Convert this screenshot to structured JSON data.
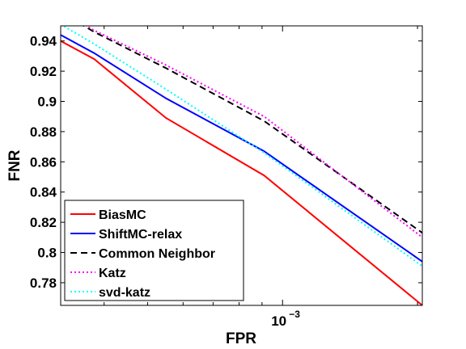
{
  "chart_data": {
    "type": "line",
    "xlabel": "FPR",
    "ylabel": "FNR",
    "x_scale": "log",
    "xlim": [
      0.00032,
      0.00205
    ],
    "ylim": [
      0.765,
      0.95
    ],
    "x_ticks": [
      {
        "value": 0.001,
        "label": "10",
        "exponent": "−3"
      }
    ],
    "y_ticks": [
      {
        "value": 0.78,
        "label": "0.78"
      },
      {
        "value": 0.8,
        "label": "0.8"
      },
      {
        "value": 0.82,
        "label": "0.82"
      },
      {
        "value": 0.84,
        "label": "0.84"
      },
      {
        "value": 0.86,
        "label": "0.86"
      },
      {
        "value": 0.88,
        "label": "0.88"
      },
      {
        "value": 0.9,
        "label": "0.9"
      },
      {
        "value": 0.92,
        "label": "0.92"
      },
      {
        "value": 0.94,
        "label": "0.94"
      }
    ],
    "grid": false,
    "legend": "bottom-left",
    "series": [
      {
        "name": "BiasMC",
        "color": "#ff0000",
        "style": "solid",
        "x": [
          0.00032,
          0.00038,
          0.00055,
          0.00091,
          0.00205
        ],
        "y": [
          0.94,
          0.928,
          0.889,
          0.851,
          0.765
        ]
      },
      {
        "name": "ShiftMC-relax",
        "color": "#0000ff",
        "style": "solid",
        "x": [
          0.00032,
          0.00038,
          0.00055,
          0.00091,
          0.00205
        ],
        "y": [
          0.944,
          0.932,
          0.902,
          0.867,
          0.794
        ]
      },
      {
        "name": "Common Neighbor",
        "color": "#000000",
        "style": "dashed",
        "x": [
          0.00032,
          0.00038,
          0.00055,
          0.00091,
          0.00205
        ],
        "y": [
          0.959,
          0.946,
          0.922,
          0.887,
          0.813
        ]
      },
      {
        "name": "Katz",
        "color": "#ff00ff",
        "style": "dotted",
        "x": [
          0.00032,
          0.00038,
          0.00055,
          0.00091,
          0.00205
        ],
        "y": [
          0.96,
          0.947,
          0.924,
          0.89,
          0.81
        ]
      },
      {
        "name": "svd-katz",
        "color": "#00ffff",
        "style": "dotted",
        "x": [
          0.00032,
          0.00038,
          0.00055,
          0.00091,
          0.00205
        ],
        "y": [
          0.951,
          0.938,
          0.908,
          0.866,
          0.791
        ]
      }
    ]
  }
}
